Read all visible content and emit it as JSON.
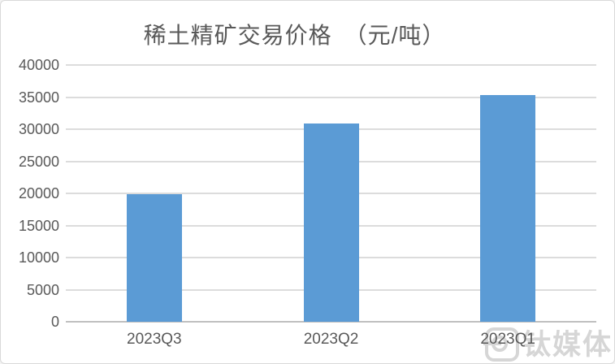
{
  "page": {
    "background": "#ffffff",
    "frame_border_color": "#d9d9d9"
  },
  "chart_data": {
    "type": "bar",
    "title": "稀土精矿交易价格　（元/吨）",
    "categories": [
      "2023Q3",
      "2023Q2",
      "2023Q1"
    ],
    "values": [
      19900,
      30900,
      35350
    ],
    "xlabel": "",
    "ylabel": "",
    "ylim": [
      0,
      40000
    ],
    "yticks": [
      0,
      5000,
      10000,
      15000,
      20000,
      25000,
      30000,
      35000,
      40000
    ],
    "grid": true,
    "legend_position": "none",
    "bar_color": "#5B9BD5",
    "gridline_color": "#dcdcdc",
    "axis_line_color": "#bfbfbf",
    "text_color": "#595959"
  },
  "watermark": {
    "text": "钛媒体",
    "color": "#d6d6d6"
  }
}
